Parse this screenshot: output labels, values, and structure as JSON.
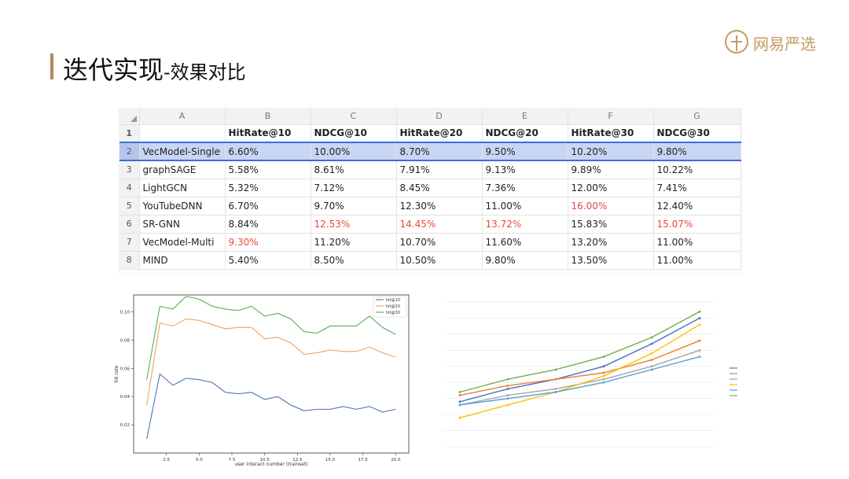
{
  "slide": {
    "title_main": "迭代实现",
    "title_sub": "-效果对比",
    "logo_text": "网易严选"
  },
  "table": {
    "column_letters": [
      "A",
      "B",
      "C",
      "D",
      "E",
      "F",
      "G"
    ],
    "row_numbers": [
      "1",
      "2",
      "3",
      "4",
      "5",
      "6",
      "7",
      "8"
    ],
    "headers": [
      "",
      "HitRate@10",
      "NDCG@10",
      "HitRate@20",
      "NDCG@20",
      "HitRate@30",
      "NDCG@30"
    ],
    "rows": [
      {
        "cells": [
          "VecModel-Single",
          "6.60%",
          "10.00%",
          "8.70%",
          "9.50%",
          "10.20%",
          "9.80%"
        ],
        "highlight": []
      },
      {
        "cells": [
          "graphSAGE",
          "5.58%",
          "8.61%",
          "7.91%",
          "9.13%",
          "9.89%",
          "10.22%"
        ],
        "highlight": []
      },
      {
        "cells": [
          "LightGCN",
          "5.32%",
          "7.12%",
          "8.45%",
          "7.36%",
          "12.00%",
          "7.41%"
        ],
        "highlight": []
      },
      {
        "cells": [
          "YouTubeDNN",
          "6.70%",
          "9.70%",
          "12.30%",
          "11.00%",
          "16.00%",
          "12.40%"
        ],
        "highlight": [
          5
        ]
      },
      {
        "cells": [
          "SR-GNN",
          "8.84%",
          "12.53%",
          "14.45%",
          "13.72%",
          "15.83%",
          "15.07%"
        ],
        "highlight": [
          2,
          3,
          4,
          6
        ]
      },
      {
        "cells": [
          "VecModel-Multi",
          "9.30%",
          "11.20%",
          "10.70%",
          "11.60%",
          "13.20%",
          "11.00%"
        ],
        "highlight": [
          1
        ]
      },
      {
        "cells": [
          "MIND",
          "5.40%",
          "8.50%",
          "10.50%",
          "9.80%",
          "13.50%",
          "11.00%"
        ],
        "highlight": []
      }
    ],
    "selected_row": 0,
    "highlight_color": "#e64a3b",
    "selection_color": "#3b6fd8"
  },
  "chart_data": [
    {
      "type": "line",
      "xlabel": "user interact number (trainset)",
      "ylabel": "hit rate",
      "x": [
        1,
        2,
        3,
        4,
        5,
        6,
        7,
        8,
        9,
        10,
        11,
        12,
        13,
        14,
        15,
        16,
        17,
        18,
        19,
        20
      ],
      "x_ticks": [
        "2.5",
        "5.0",
        "7.5",
        "10.0",
        "12.5",
        "15.0",
        "17.5",
        "20.0"
      ],
      "y_ticks": [
        "0.02",
        "0.04",
        "0.06",
        "0.08",
        "0.10"
      ],
      "xlim": [
        0,
        21
      ],
      "ylim": [
        0.0,
        0.112
      ],
      "series": [
        {
          "name": "hit@10",
          "color": "#4c72b0",
          "values": [
            0.01,
            0.056,
            0.048,
            0.053,
            0.052,
            0.05,
            0.043,
            0.042,
            0.043,
            0.038,
            0.04,
            0.034,
            0.03,
            0.031,
            0.031,
            0.033,
            0.031,
            0.033,
            0.029,
            0.031
          ]
        },
        {
          "name": "hit@20",
          "color": "#f0a060",
          "values": [
            0.034,
            0.092,
            0.09,
            0.095,
            0.094,
            0.091,
            0.088,
            0.089,
            0.089,
            0.081,
            0.082,
            0.078,
            0.07,
            0.071,
            0.073,
            0.072,
            0.072,
            0.075,
            0.071,
            0.068
          ]
        },
        {
          "name": "hit@30",
          "color": "#5aaa5a",
          "values": [
            0.052,
            0.104,
            0.102,
            0.111,
            0.109,
            0.104,
            0.102,
            0.101,
            0.104,
            0.097,
            0.099,
            0.095,
            0.086,
            0.085,
            0.09,
            0.09,
            0.09,
            0.097,
            0.089,
            0.084
          ]
        }
      ],
      "legend": "top-right",
      "grid": false
    },
    {
      "type": "line",
      "xlabel": "",
      "ylabel": "",
      "x": [
        1,
        2,
        3,
        4,
        5,
        6
      ],
      "ylim": [
        0,
        0.45
      ],
      "series": [
        {
          "color": "#4472c4",
          "values": [
            0.14,
            0.18,
            0.21,
            0.25,
            0.32,
            0.4
          ]
        },
        {
          "color": "#ed7d31",
          "values": [
            0.16,
            0.19,
            0.21,
            0.23,
            0.27,
            0.33
          ]
        },
        {
          "color": "#a5a5a5",
          "values": [
            0.13,
            0.16,
            0.18,
            0.21,
            0.25,
            0.3
          ]
        },
        {
          "color": "#ffc000",
          "values": [
            0.09,
            0.13,
            0.17,
            0.22,
            0.29,
            0.38
          ]
        },
        {
          "color": "#5b9bd5",
          "values": [
            0.13,
            0.15,
            0.17,
            0.2,
            0.24,
            0.28
          ]
        },
        {
          "color": "#70ad47",
          "values": [
            0.17,
            0.21,
            0.24,
            0.28,
            0.34,
            0.42
          ]
        }
      ],
      "legend": "right",
      "grid": true
    }
  ]
}
